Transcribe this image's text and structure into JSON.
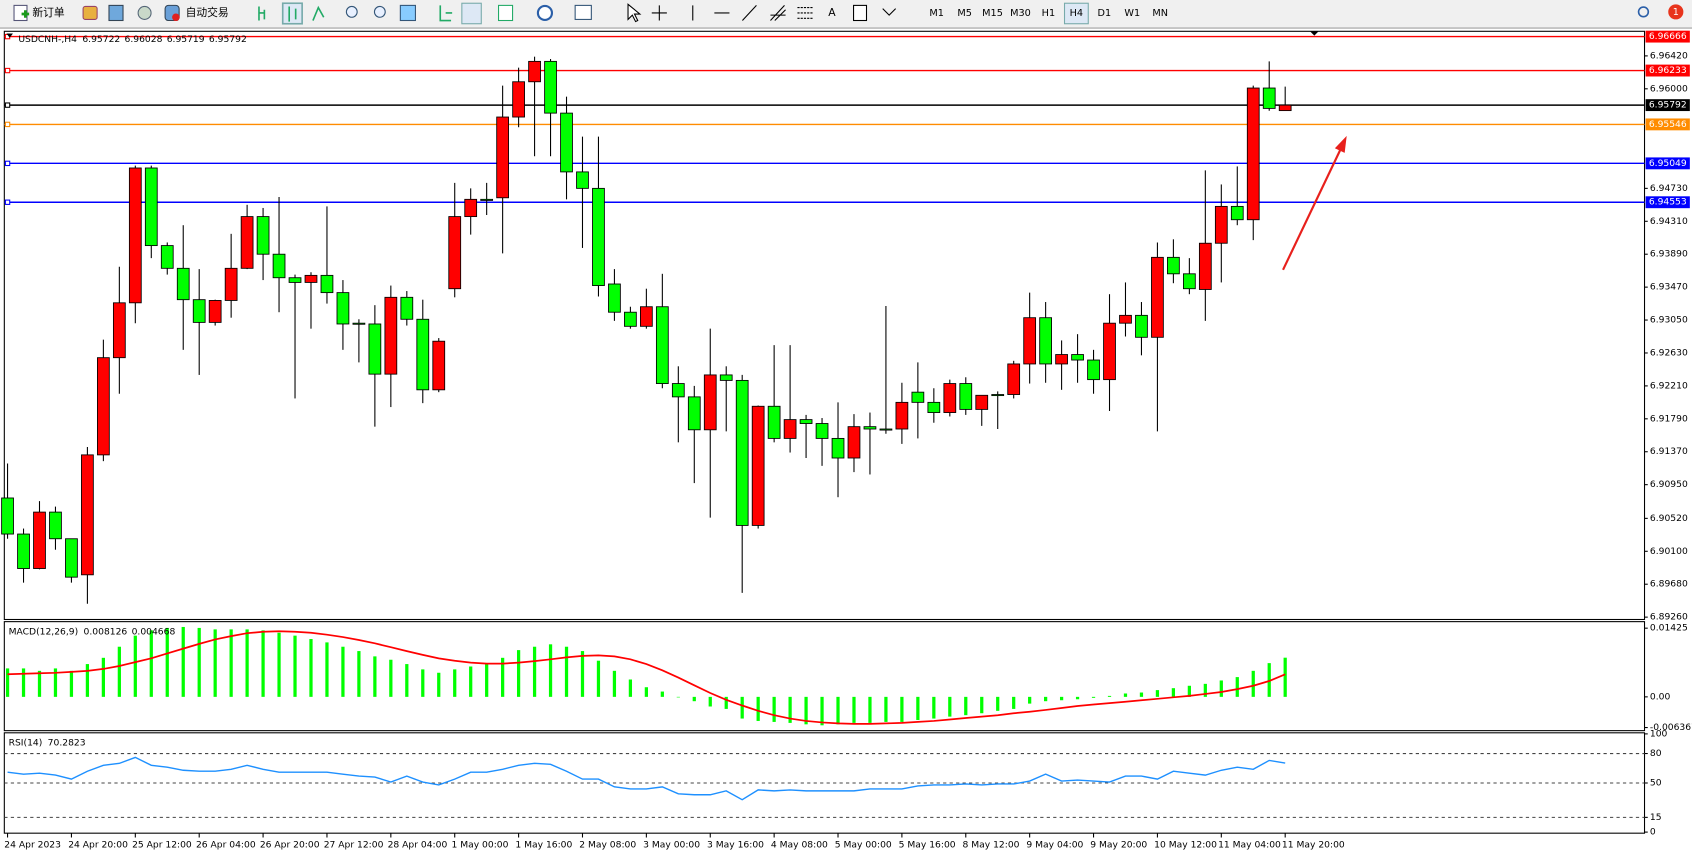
{
  "toolbar": {
    "new_order": "新订单",
    "auto_trading": "自动交易",
    "text_tool": "A",
    "timeframes": [
      "M1",
      "M5",
      "M15",
      "M30",
      "H1",
      "H4",
      "D1",
      "W1",
      "MN"
    ],
    "active_timeframe": 5,
    "notifications": 1
  },
  "chart_data": [
    {
      "type": "candlestick",
      "title": "USDCNH-,H4",
      "categories": [
        "24 Apr 2023",
        null,
        null,
        null,
        "24 Apr 20:00",
        null,
        null,
        null,
        "25 Apr 12:00",
        null,
        null,
        null,
        "26 Apr 04:00",
        null,
        null,
        null,
        "26 Apr 20:00",
        null,
        null,
        null,
        "27 Apr 12:00",
        null,
        null,
        null,
        "28 Apr 04:00",
        null,
        null,
        null,
        "1 May 00:00",
        null,
        null,
        null,
        "1 May 16:00",
        null,
        null,
        null,
        "2 May 08:00",
        null,
        null,
        null,
        "3 May 00:00",
        null,
        null,
        null,
        "3 May 16:00",
        null,
        null,
        null,
        "4 May 08:00",
        null,
        null,
        null,
        "5 May 00:00",
        null,
        null,
        null,
        "5 May 16:00",
        null,
        null,
        null,
        "8 May 12:00",
        null,
        null,
        null,
        "9 May 04:00",
        null,
        null,
        null,
        "9 May 20:00",
        null,
        null,
        null,
        "10 May 12:00",
        null,
        null,
        null,
        "11 May 04:00",
        null,
        null,
        null,
        "11 May 20:00"
      ],
      "open": [
        6.9078,
        6.9032,
        6.8988,
        6.906,
        6.9026,
        6.898,
        6.9133,
        6.9257,
        6.9327,
        6.9499,
        6.94,
        6.9371,
        6.9331,
        6.9302,
        6.933,
        6.9371,
        6.9437,
        6.9389,
        6.9359,
        6.9353,
        6.9362,
        6.934,
        6.9301,
        6.93,
        6.9236,
        6.9334,
        6.9306,
        6.9216,
        6.9345,
        6.9437,
        6.9459,
        6.9461,
        6.9564,
        6.9609,
        6.9635,
        6.9569,
        6.9494,
        6.9473,
        6.9351,
        6.9315,
        6.9297,
        6.9322,
        6.9224,
        6.9207,
        6.9165,
        6.9235,
        6.9228,
        6.9043,
        6.9195,
        6.9154,
        6.9178,
        6.9173,
        6.9154,
        6.9129,
        6.9169,
        6.9166,
        6.9166,
        6.9213,
        6.92,
        6.9187,
        6.9224,
        6.9191,
        6.921,
        6.921,
        6.9249,
        6.9308,
        6.9249,
        6.9261,
        6.9254,
        6.9229,
        6.9301,
        6.9311,
        6.9283,
        6.9385,
        6.9364,
        6.9344,
        6.9403,
        6.945,
        6.9433,
        6.9601,
        6.95722
      ],
      "high": [
        6.9122,
        6.9039,
        6.9074,
        6.9067,
        6.9026,
        6.9143,
        6.928,
        6.9373,
        6.9502,
        6.9502,
        6.9404,
        6.9426,
        6.937,
        6.9331,
        6.9415,
        6.9452,
        6.9448,
        6.9462,
        6.9363,
        6.9366,
        6.945,
        6.9356,
        6.9306,
        6.9324,
        6.9349,
        6.9342,
        6.9331,
        6.9282,
        6.948,
        6.9473,
        6.948,
        6.9604,
        6.9627,
        6.9641,
        6.9638,
        6.959,
        6.9539,
        6.9539,
        6.937,
        6.9322,
        6.9345,
        6.9364,
        6.9246,
        6.9221,
        6.9294,
        6.9246,
        6.9235,
        6.9196,
        6.9273,
        6.9273,
        6.9184,
        6.918,
        6.92,
        6.9185,
        6.9187,
        6.9323,
        6.9225,
        6.9251,
        6.9218,
        6.9229,
        6.9232,
        6.9209,
        6.9214,
        6.9253,
        6.934,
        6.9328,
        6.9279,
        6.9287,
        6.9267,
        6.9338,
        6.9353,
        6.9328,
        6.9404,
        6.9408,
        6.9384,
        6.9496,
        6.9478,
        6.9501,
        6.9604,
        6.9635,
        6.96028
      ],
      "low": [
        6.9026,
        6.897,
        6.8987,
        6.9012,
        6.897,
        6.8943,
        6.9125,
        6.9211,
        6.9301,
        6.9384,
        6.9363,
        6.9267,
        6.9235,
        6.9298,
        6.9308,
        6.937,
        6.9356,
        6.9315,
        6.9205,
        6.9294,
        6.9326,
        6.9267,
        6.9251,
        6.9169,
        6.9194,
        6.9298,
        6.9199,
        6.9213,
        6.9334,
        6.9414,
        6.9439,
        6.939,
        6.9551,
        6.9514,
        6.9514,
        6.9459,
        6.9397,
        6.9335,
        6.9304,
        6.9294,
        6.9294,
        6.9218,
        6.9149,
        6.9097,
        6.9053,
        6.9163,
        6.8957,
        6.9039,
        6.9149,
        6.9136,
        6.9129,
        6.9119,
        6.9079,
        6.9111,
        6.9108,
        6.916,
        6.9147,
        6.9154,
        6.9174,
        6.9182,
        6.9184,
        6.917,
        6.9166,
        6.9205,
        6.9224,
        6.9225,
        6.9216,
        6.9225,
        6.9211,
        6.9189,
        6.9284,
        6.926,
        6.9163,
        6.9352,
        6.9338,
        6.9304,
        6.9353,
        6.9426,
        6.9407,
        6.9572,
        6.95719
      ],
      "close": [
        6.9032,
        6.8988,
        6.906,
        6.9026,
        6.8977,
        6.9133,
        6.9257,
        6.9327,
        6.9499,
        6.94,
        6.9371,
        6.9331,
        6.9302,
        6.933,
        6.9371,
        6.9437,
        6.9389,
        6.9359,
        6.9353,
        6.9362,
        6.934,
        6.93,
        6.93,
        6.9236,
        6.9334,
        6.9306,
        6.9216,
        6.9278,
        6.9437,
        6.9459,
        6.9458,
        6.9564,
        6.9609,
        6.9635,
        6.9569,
        6.9494,
        6.9473,
        6.9349,
        6.9315,
        6.9297,
        6.9322,
        6.9224,
        6.9207,
        6.9165,
        6.9235,
        6.9228,
        6.9043,
        6.9195,
        6.9154,
        6.9178,
        6.9173,
        6.9154,
        6.9129,
        6.9169,
        6.9166,
        6.9165,
        6.92,
        6.92,
        6.9187,
        6.9224,
        6.9191,
        6.9209,
        6.9209,
        6.9249,
        6.9308,
        6.9249,
        6.9261,
        6.9254,
        6.9229,
        6.9301,
        6.9311,
        6.9283,
        6.9385,
        6.9364,
        6.9345,
        6.9403,
        6.945,
        6.9433,
        6.9601,
        6.9575,
        6.95792
      ],
      "up_color": "#ff0000",
      "down_color": "#00ff00",
      "ylim": [
        6.8923,
        6.9672
      ],
      "yticks": [
        {
          "value": 6.9642,
          "label": "6.96420"
        },
        {
          "value": 6.96,
          "label": "6.96000"
        },
        {
          "value": 6.9473,
          "label": "6.94730"
        },
        {
          "value": 6.9431,
          "label": "6.94310"
        },
        {
          "value": 6.9389,
          "label": "6.93890"
        },
        {
          "value": 6.9347,
          "label": "6.93470"
        },
        {
          "value": 6.9305,
          "label": "6.93050"
        },
        {
          "value": 6.9263,
          "label": "6.92630"
        },
        {
          "value": 6.9221,
          "label": "6.92210"
        },
        {
          "value": 6.9179,
          "label": "6.91790"
        },
        {
          "value": 6.9137,
          "label": "6.91370"
        },
        {
          "value": 6.9095,
          "label": "6.90950"
        },
        {
          "value": 6.9052,
          "label": "6.90520"
        },
        {
          "value": 6.901,
          "label": "6.90100"
        },
        {
          "value": 6.8968,
          "label": "6.89680"
        },
        {
          "value": 6.8926,
          "label": "6.89260"
        }
      ],
      "levels": [
        {
          "value": 6.96666,
          "color": "#ff0000"
        },
        {
          "value": 6.96233,
          "color": "#ff0000"
        },
        {
          "value": 6.95792,
          "color": "#000000"
        },
        {
          "value": 6.95546,
          "color": "#ff8c00"
        },
        {
          "value": 6.95049,
          "color": "#0000ff"
        },
        {
          "value": 6.94553,
          "color": "#0000ff"
        }
      ]
    },
    {
      "type": "macd",
      "title": "MACD(12,26,9)",
      "histogram": {
        "color": "#00ff00",
        "values": [
          0.0059,
          0.0059,
          0.0054,
          0.0059,
          0.0054,
          0.0068,
          0.0081,
          0.0104,
          0.0127,
          0.0138,
          0.0143,
          0.0145,
          0.0143,
          0.014,
          0.014,
          0.014,
          0.0138,
          0.0133,
          0.0127,
          0.012,
          0.0113,
          0.0104,
          0.0095,
          0.0084,
          0.0077,
          0.0068,
          0.0057,
          0.005,
          0.0057,
          0.0063,
          0.007,
          0.0081,
          0.0097,
          0.0104,
          0.0109,
          0.0104,
          0.0095,
          0.0075,
          0.0054,
          0.0036,
          0.002,
          0.0011,
          -0.0001,
          -0.0009,
          -0.002,
          -0.0025,
          -0.0045,
          -0.005,
          -0.0052,
          -0.0054,
          -0.0057,
          -0.0059,
          -0.0057,
          -0.0054,
          -0.0054,
          -0.0052,
          -0.0052,
          -0.0048,
          -0.0045,
          -0.0041,
          -0.0038,
          -0.0034,
          -0.0029,
          -0.0025,
          -0.0014,
          -0.0009,
          -0.0007,
          -0.0005,
          -0.0002,
          0.0002,
          0.0007,
          0.0009,
          0.0014,
          0.0018,
          0.0023,
          0.0027,
          0.0034,
          0.0041,
          0.0054,
          0.007,
          0.008126
        ]
      },
      "signal": {
        "color": "#ff0000",
        "values": [
          0.0047,
          0.0048,
          0.0049,
          0.005,
          0.0052,
          0.0054,
          0.0058,
          0.0064,
          0.0072,
          0.008,
          0.009,
          0.01,
          0.011,
          0.0119,
          0.0126,
          0.0132,
          0.0135,
          0.0136,
          0.0135,
          0.0133,
          0.0129,
          0.0124,
          0.0118,
          0.0111,
          0.0103,
          0.0095,
          0.0087,
          0.008,
          0.0075,
          0.0071,
          0.0069,
          0.0069,
          0.0071,
          0.0074,
          0.0078,
          0.0082,
          0.0085,
          0.0086,
          0.0084,
          0.0078,
          0.0068,
          0.0055,
          0.004,
          0.0024,
          0.0008,
          -0.0006,
          -0.0018,
          -0.0029,
          -0.0038,
          -0.0045,
          -0.005,
          -0.0053,
          -0.0055,
          -0.0056,
          -0.0056,
          -0.0055,
          -0.0054,
          -0.0052,
          -0.005,
          -0.0047,
          -0.0044,
          -0.0041,
          -0.0038,
          -0.0034,
          -0.0031,
          -0.0027,
          -0.0023,
          -0.0019,
          -0.0016,
          -0.0013,
          -0.001,
          -0.0007,
          -0.0004,
          -0.0001,
          0.0002,
          0.0006,
          0.001,
          0.0016,
          0.0023,
          0.0033,
          0.004668
        ]
      },
      "ylim": [
        -0.00701,
        0.01538
      ],
      "yticks": [
        0.01425,
        {
          "value": 0,
          "label": "0.00"
        },
        -0.006367
      ]
    },
    {
      "type": "line",
      "title": "RSI(14)",
      "color": "#1e90ff",
      "values": [
        61,
        59,
        60,
        58,
        54,
        62,
        68,
        70,
        76,
        68,
        66,
        63,
        62,
        62,
        64,
        68,
        64,
        61,
        61,
        61,
        61,
        59,
        57,
        56,
        51,
        57,
        51,
        48,
        54,
        61,
        61,
        64,
        68,
        70,
        69,
        62,
        54,
        54,
        46,
        44,
        44,
        46,
        39,
        38,
        38,
        42,
        33,
        43,
        42,
        43,
        42,
        42,
        42,
        42,
        44,
        44,
        44,
        47,
        48,
        48,
        49,
        48,
        49,
        49,
        52,
        59,
        52,
        53,
        52,
        51,
        57,
        57,
        54,
        62,
        60,
        58,
        63,
        66,
        64,
        73,
        70.2823
      ],
      "ylim": [
        0,
        100
      ],
      "yticks": [
        100,
        80,
        50,
        15,
        0
      ],
      "hlines": [
        80,
        50,
        15
      ]
    }
  ]
}
